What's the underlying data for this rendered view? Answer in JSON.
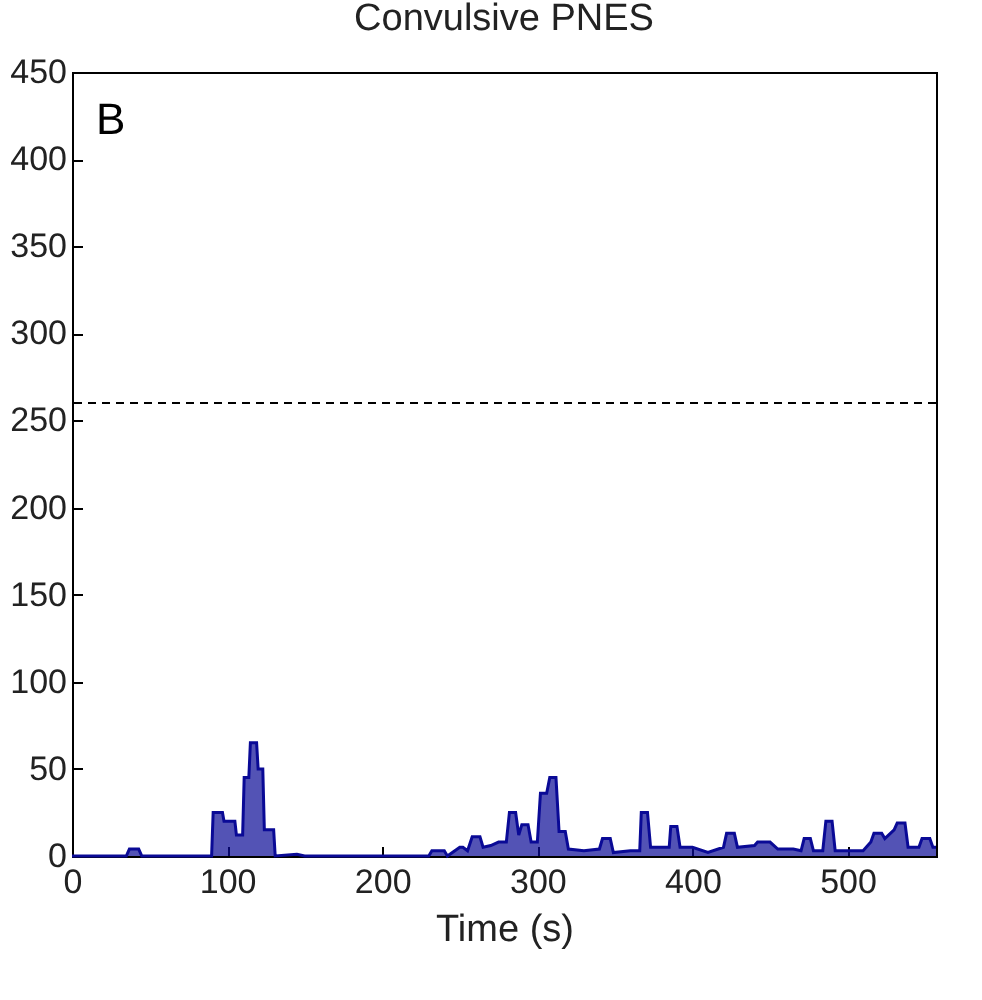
{
  "chart_data": {
    "type": "area",
    "title": "Convulsive PNES",
    "xlabel": "Time (s)",
    "annotations": [
      "B"
    ],
    "xlim": [
      0,
      557
    ],
    "xticks": [
      0,
      100,
      200,
      300,
      400,
      500
    ],
    "ylim": [
      0,
      450
    ],
    "yticks": [
      0,
      50,
      100,
      150,
      200,
      250,
      300,
      350,
      400,
      450
    ],
    "grid": false,
    "ref_lines": [
      {
        "axis": "y",
        "value": 260,
        "line_style": "dashed",
        "color": "#000000"
      }
    ],
    "series": [
      {
        "color": "#0a0a96",
        "x": [
          0,
          35,
          37,
          43,
          45,
          90,
          91,
          97,
          98,
          105,
          106,
          110,
          111,
          114,
          115,
          119,
          120,
          123,
          124,
          130,
          131,
          145,
          150,
          200,
          230,
          232,
          240,
          242,
          250,
          252,
          255,
          258,
          263,
          265,
          270,
          275,
          280,
          282,
          286,
          288,
          290,
          294,
          296,
          300,
          302,
          306,
          308,
          312,
          314,
          318,
          320,
          330,
          340,
          342,
          347,
          349,
          360,
          366,
          367,
          371,
          373,
          385,
          386,
          390,
          392,
          400,
          410,
          420,
          422,
          427,
          429,
          440,
          442,
          450,
          455,
          465,
          470,
          472,
          476,
          478,
          484,
          486,
          490,
          492,
          510,
          515,
          517,
          522,
          524,
          530,
          532,
          537,
          539,
          546,
          548,
          553,
          555,
          557
        ],
        "values": [
          0,
          0,
          4,
          4,
          0,
          0,
          25,
          25,
          20,
          20,
          12,
          12,
          45,
          45,
          65,
          65,
          50,
          50,
          15,
          15,
          0,
          1,
          0,
          0,
          0,
          3,
          3,
          0,
          5,
          5,
          3,
          11,
          11,
          5,
          6,
          8,
          8,
          25,
          25,
          12,
          18,
          18,
          8,
          8,
          36,
          36,
          45,
          45,
          14,
          14,
          4,
          3,
          4,
          10,
          10,
          2,
          3,
          3,
          25,
          25,
          5,
          5,
          17,
          17,
          5,
          5,
          2,
          5,
          13,
          13,
          5,
          6,
          8,
          8,
          4,
          4,
          3,
          10,
          10,
          3,
          3,
          20,
          20,
          3,
          3,
          8,
          13,
          13,
          10,
          15,
          19,
          19,
          5,
          5,
          10,
          10,
          5,
          5
        ]
      }
    ]
  }
}
